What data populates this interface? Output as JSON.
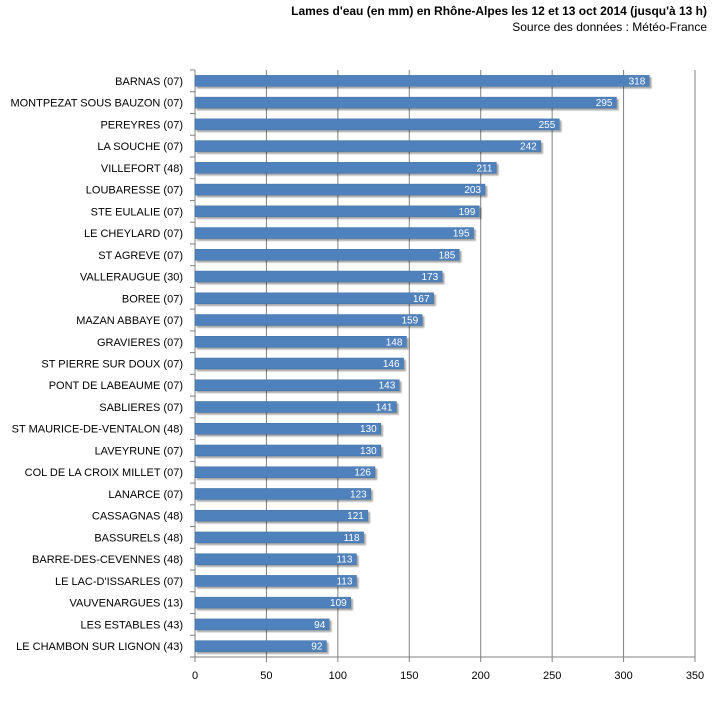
{
  "chart_data": {
    "type": "bar",
    "orientation": "horizontal",
    "title": "Lames d'eau (en mm) en Rhône-Alpes les 12 et 13 oct 2014 (jusqu'à 13 h)",
    "subtitle": "Source des données : Météo-France",
    "xlabel": "",
    "ylabel": "",
    "xlim": [
      0,
      350
    ],
    "xticks": [
      0,
      50,
      100,
      150,
      200,
      250,
      300,
      350
    ],
    "grid": "vertical",
    "legend": "none",
    "bar_color": "#4f81bd",
    "categories": [
      "BARNAS (07)",
      "MONTPEZAT SOUS BAUZON (07)",
      "PEREYRES (07)",
      "LA SOUCHE (07)",
      "VILLEFORT (48)",
      "LOUBARESSE (07)",
      "STE EULALIE (07)",
      "LE CHEYLARD (07)",
      "ST AGREVE (07)",
      "VALLERAUGUE (30)",
      "BOREE (07)",
      "MAZAN ABBAYE (07)",
      "GRAVIERES (07)",
      "ST PIERRE SUR DOUX (07)",
      "PONT DE LABEAUME (07)",
      "SABLIERES (07)",
      "ST MAURICE-DE-VENTALON (48)",
      "LAVEYRUNE (07)",
      "COL DE LA CROIX MILLET (07)",
      "LANARCE (07)",
      "CASSAGNAS (48)",
      "BASSURELS (48)",
      "BARRE-DES-CEVENNES (48)",
      "LE LAC-D'ISSARLES (07)",
      "VAUVENARGUES (13)",
      "LES ESTABLES (43)",
      "LE CHAMBON SUR LIGNON (43)"
    ],
    "values": [
      318,
      295,
      255,
      242,
      211,
      203,
      199,
      195,
      185,
      173,
      167,
      159,
      148,
      146,
      143,
      141,
      130,
      130,
      126,
      123,
      121,
      118,
      113,
      113,
      109,
      94,
      92
    ]
  }
}
